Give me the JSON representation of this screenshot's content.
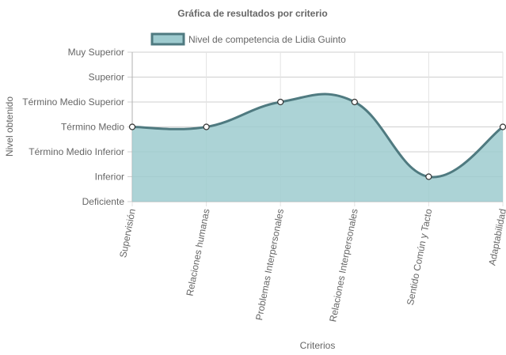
{
  "chart_data": {
    "type": "area",
    "title": "Gráfica de resultados por criterio",
    "xlabel": "Criterios",
    "ylabel": "Nivel obtenido",
    "y_levels": [
      "Deficiente",
      "Inferior",
      "Término Medio Inferior",
      "Término Medio",
      "Término Medio Superior",
      "Superior",
      "Muy Superior"
    ],
    "ylim": [
      0,
      6
    ],
    "categories": [
      "Supervisión",
      "Relaciones humanas",
      "Problemas Interpersonales",
      "Relaciones Interpersonales",
      "Sentido Común y Tacto",
      "Adaptabilidad"
    ],
    "series": [
      {
        "name": "Nivel de competencia de Lidia Guinto",
        "values": [
          3,
          3,
          4,
          4,
          1,
          3
        ],
        "fill_color": "#9ecbcf",
        "line_color": "#4f7a80"
      }
    ],
    "legend_position": "top",
    "grid": true
  }
}
